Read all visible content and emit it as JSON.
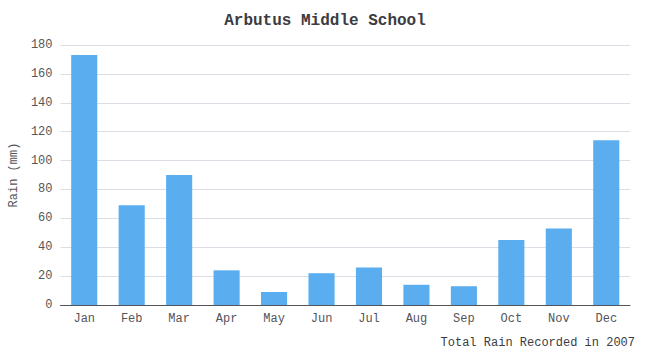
{
  "chart_data": {
    "type": "bar",
    "title": "Arbutus Middle School",
    "xlabel": "Total Rain Recorded in 2007",
    "ylabel": "Rain (mm)",
    "categories": [
      "Jan",
      "Feb",
      "Mar",
      "Apr",
      "May",
      "Jun",
      "Jul",
      "Aug",
      "Sep",
      "Oct",
      "Nov",
      "Dec"
    ],
    "values": [
      173,
      69,
      90,
      24,
      9,
      22,
      26,
      14,
      13,
      45,
      53,
      114
    ],
    "color": "#5aaef0",
    "ylim": [
      0,
      180
    ],
    "yticks": [
      0,
      20,
      40,
      60,
      80,
      100,
      120,
      140,
      160,
      180
    ],
    "grid": true
  }
}
